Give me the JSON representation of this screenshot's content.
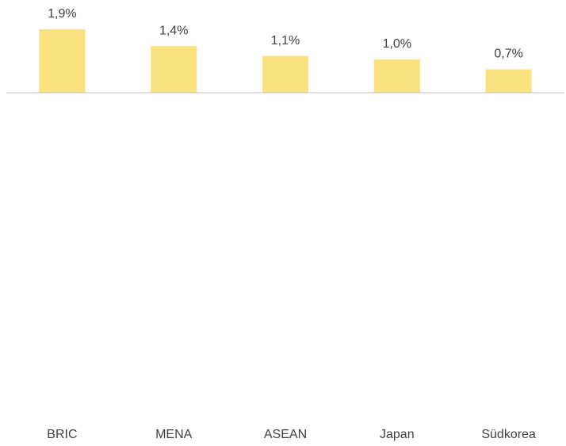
{
  "chart_data": {
    "type": "bar",
    "categories": [
      "BRIC",
      "MENA",
      "ASEAN",
      "Japan",
      "Südkorea"
    ],
    "values": [
      1.9,
      1.4,
      1.1,
      1.0,
      0.7
    ],
    "value_labels": [
      "1,9%",
      "1,4%",
      "1,1%",
      "1,0%",
      "0,7%"
    ],
    "color": "#f9e27e"
  }
}
